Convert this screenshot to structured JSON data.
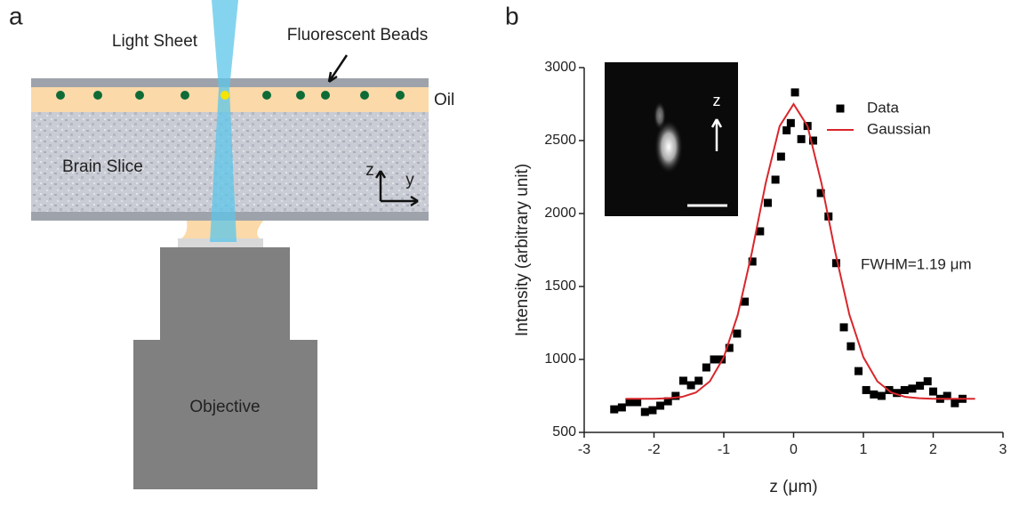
{
  "panel_a": {
    "label": "a",
    "light_sheet": "Light Sheet",
    "beads": "Fluorescent Beads",
    "oil": "Oil",
    "brain_slice": "Brain Slice",
    "axis_z": "z",
    "axis_y": "y",
    "objective": "Objective"
  },
  "chart_data": {
    "type": "scatter",
    "panel_label": "b",
    "x_label": "z (μm)",
    "y_label": "Intensity (arbitrary unit)",
    "annotation": "FWHM=1.19 μm",
    "inset_label": "z",
    "xlim": [
      -3,
      3
    ],
    "xticks": [
      -3,
      -2,
      -1,
      0,
      1,
      2,
      3
    ],
    "ylim": [
      500,
      3000
    ],
    "yticks": [
      500,
      1000,
      1500,
      2000,
      2500,
      3000
    ],
    "legend": "upper right",
    "series": [
      {
        "name": "Data",
        "color": "#000000",
        "style": "markers",
        "x": [
          -2.57,
          -2.46,
          -2.35,
          -2.24,
          -2.13,
          -2.02,
          -1.91,
          -1.8,
          -1.69,
          -1.58,
          -1.47,
          -1.36,
          -1.25,
          -1.14,
          -1.03,
          -0.92,
          -0.81,
          -0.7,
          -0.59,
          -0.48,
          -0.37,
          -0.26,
          -0.18,
          -0.1,
          -0.04,
          0.02,
          0.11,
          0.2,
          0.28,
          0.39,
          0.5,
          0.61,
          0.72,
          0.82,
          0.93,
          1.04,
          1.15,
          1.26,
          1.37,
          1.48,
          1.59,
          1.7,
          1.81,
          1.92,
          2.0,
          2.1,
          2.2,
          2.31,
          2.42
        ],
        "values": [
          658,
          671,
          707,
          707,
          640,
          652,
          683,
          713,
          750,
          854,
          823,
          854,
          945,
          1000,
          1000,
          1079,
          1177,
          1396,
          1671,
          1878,
          2073,
          2232,
          2390,
          2570,
          2620,
          2830,
          2510,
          2600,
          2500,
          2140,
          1980,
          1660,
          1220,
          1090,
          920,
          790,
          760,
          750,
          790,
          770,
          790,
          800,
          820,
          850,
          780,
          730,
          750,
          700,
          730
        ]
      },
      {
        "name": "Gaussian",
        "color": "#d9262b",
        "style": "line",
        "x": [
          -2.4,
          -2.2,
          -2.0,
          -1.8,
          -1.6,
          -1.4,
          -1.2,
          -1.0,
          -0.8,
          -0.6,
          -0.4,
          -0.2,
          0,
          0.2,
          0.4,
          0.6,
          0.8,
          1.0,
          1.2,
          1.4,
          1.6,
          1.8,
          2.0,
          2.2,
          2.4,
          2.6
        ],
        "values": [
          730,
          730,
          730,
          734,
          743,
          773,
          850,
          1015,
          1306,
          1728,
          2207,
          2599,
          2750,
          2599,
          2207,
          1728,
          1306,
          1015,
          850,
          773,
          743,
          734,
          730,
          730,
          730,
          730
        ]
      }
    ]
  }
}
